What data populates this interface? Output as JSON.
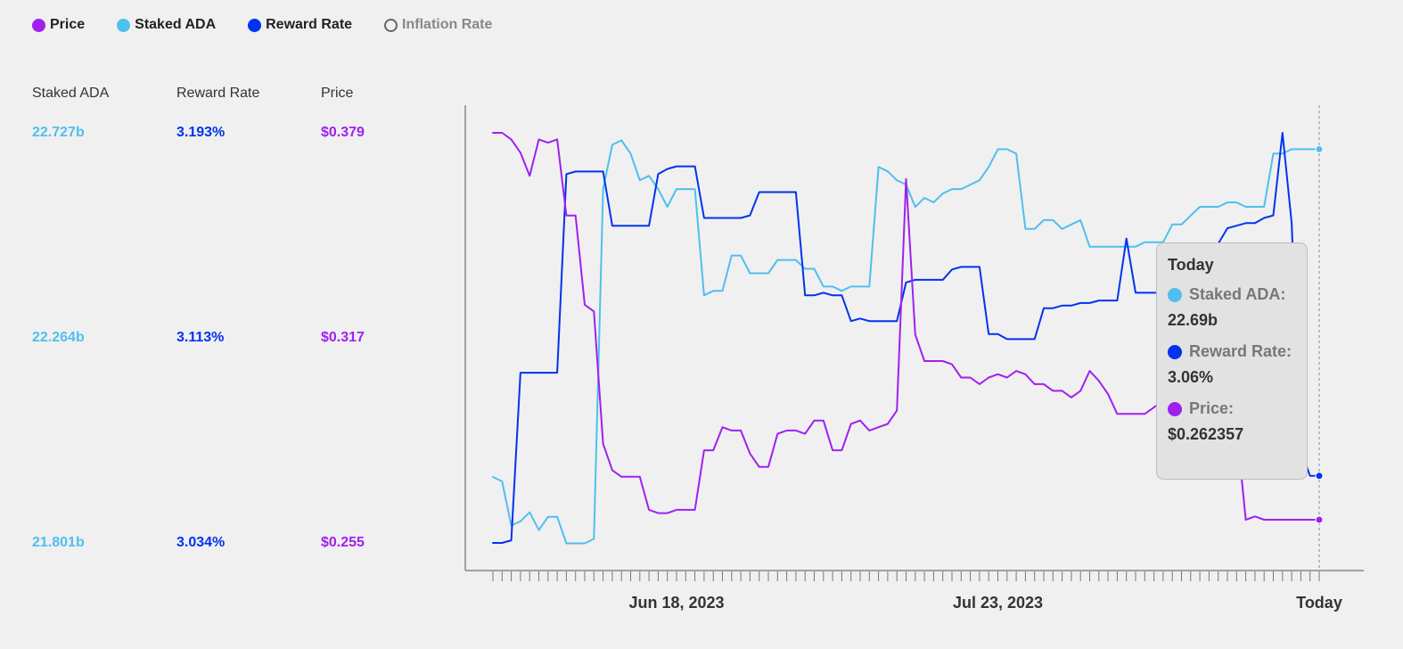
{
  "legend": [
    {
      "label": "Price",
      "color": "#a020f0",
      "active": true
    },
    {
      "label": "Staked ADA",
      "color": "#4fbfef",
      "active": true
    },
    {
      "label": "Reward Rate",
      "color": "#0033ee",
      "active": true
    },
    {
      "label": "Inflation Rate",
      "color": "#666666",
      "active": false
    }
  ],
  "axes": {
    "staked_header": "Staked ADA",
    "reward_header": "Reward Rate",
    "price_header": "Price",
    "staked_ticks": [
      "22.727b",
      "22.264b",
      "21.801b"
    ],
    "reward_ticks": [
      "3.193%",
      "3.113%",
      "3.034%"
    ],
    "price_ticks": [
      "$0.379",
      "$0.317",
      "$0.255"
    ]
  },
  "tooltip": {
    "title": "Today",
    "staked_label": "Staked ADA:",
    "staked_value": "22.69b",
    "reward_label": "Reward Rate:",
    "reward_value": "3.06%",
    "price_label": "Price:",
    "price_value": "$0.262357"
  },
  "chart_data": {
    "type": "line",
    "x_labels": [
      "Jun 18, 2023",
      "Jul 23, 2023",
      "Today"
    ],
    "x_label_index": [
      20,
      55,
      90
    ],
    "n_points": 91,
    "series": [
      {
        "name": "Staked ADA",
        "color": "#4fbfef",
        "axis": "staked",
        "ylim": [
          21.801,
          22.727
        ],
        "values": [
          21.95,
          21.94,
          21.84,
          21.85,
          21.87,
          21.83,
          21.86,
          21.86,
          21.8,
          21.8,
          21.8,
          21.81,
          22.6,
          22.7,
          22.71,
          22.68,
          22.62,
          22.63,
          22.6,
          22.56,
          22.6,
          22.6,
          22.6,
          22.36,
          22.37,
          22.37,
          22.45,
          22.45,
          22.41,
          22.41,
          22.41,
          22.44,
          22.44,
          22.44,
          22.42,
          22.42,
          22.38,
          22.38,
          22.37,
          22.38,
          22.38,
          22.38,
          22.65,
          22.64,
          22.62,
          22.61,
          22.56,
          22.58,
          22.57,
          22.59,
          22.6,
          22.6,
          22.61,
          22.62,
          22.65,
          22.69,
          22.69,
          22.68,
          22.51,
          22.51,
          22.53,
          22.53,
          22.51,
          22.52,
          22.53,
          22.47,
          22.47,
          22.47,
          22.47,
          22.47,
          22.47,
          22.48,
          22.48,
          22.48,
          22.52,
          22.52,
          22.54,
          22.56,
          22.56,
          22.56,
          22.57,
          22.57,
          22.56,
          22.56,
          22.56,
          22.68,
          22.68,
          22.69,
          22.69,
          22.69,
          22.69
        ]
      },
      {
        "name": "Reward Rate",
        "color": "#0033ee",
        "axis": "reward",
        "ylim": [
          3.034,
          3.193
        ],
        "values": [
          3.034,
          3.034,
          3.035,
          3.1,
          3.1,
          3.1,
          3.1,
          3.1,
          3.177,
          3.178,
          3.178,
          3.178,
          3.178,
          3.157,
          3.157,
          3.157,
          3.157,
          3.157,
          3.177,
          3.179,
          3.18,
          3.18,
          3.18,
          3.16,
          3.16,
          3.16,
          3.16,
          3.16,
          3.161,
          3.17,
          3.17,
          3.17,
          3.17,
          3.17,
          3.13,
          3.13,
          3.131,
          3.13,
          3.13,
          3.12,
          3.121,
          3.12,
          3.12,
          3.12,
          3.12,
          3.135,
          3.136,
          3.136,
          3.136,
          3.136,
          3.14,
          3.141,
          3.141,
          3.141,
          3.115,
          3.115,
          3.113,
          3.113,
          3.113,
          3.113,
          3.125,
          3.125,
          3.126,
          3.126,
          3.127,
          3.127,
          3.128,
          3.128,
          3.128,
          3.152,
          3.131,
          3.131,
          3.131,
          3.131,
          3.131,
          3.131,
          3.143,
          3.143,
          3.15,
          3.15,
          3.156,
          3.157,
          3.158,
          3.158,
          3.16,
          3.161,
          3.193,
          3.158,
          3.07,
          3.06,
          3.06
        ]
      },
      {
        "name": "Price",
        "color": "#a020f0",
        "axis": "price",
        "ylim": [
          0.255,
          0.379
        ],
        "values": [
          0.379,
          0.379,
          0.377,
          0.373,
          0.366,
          0.377,
          0.376,
          0.377,
          0.354,
          0.354,
          0.327,
          0.325,
          0.285,
          0.277,
          0.275,
          0.275,
          0.275,
          0.265,
          0.264,
          0.264,
          0.265,
          0.265,
          0.265,
          0.283,
          0.283,
          0.29,
          0.289,
          0.289,
          0.282,
          0.278,
          0.278,
          0.288,
          0.289,
          0.289,
          0.288,
          0.292,
          0.292,
          0.283,
          0.283,
          0.291,
          0.292,
          0.289,
          0.29,
          0.291,
          0.295,
          0.365,
          0.318,
          0.31,
          0.31,
          0.31,
          0.309,
          0.305,
          0.305,
          0.303,
          0.305,
          0.306,
          0.305,
          0.307,
          0.306,
          0.303,
          0.303,
          0.301,
          0.301,
          0.299,
          0.301,
          0.307,
          0.304,
          0.3,
          0.294,
          0.294,
          0.294,
          0.294,
          0.296,
          0.298,
          0.3,
          0.302,
          0.302,
          0.302,
          0.302,
          0.303,
          0.303,
          0.29,
          0.262,
          0.263,
          0.262,
          0.262,
          0.262,
          0.262,
          0.262,
          0.262,
          0.262
        ]
      }
    ]
  }
}
